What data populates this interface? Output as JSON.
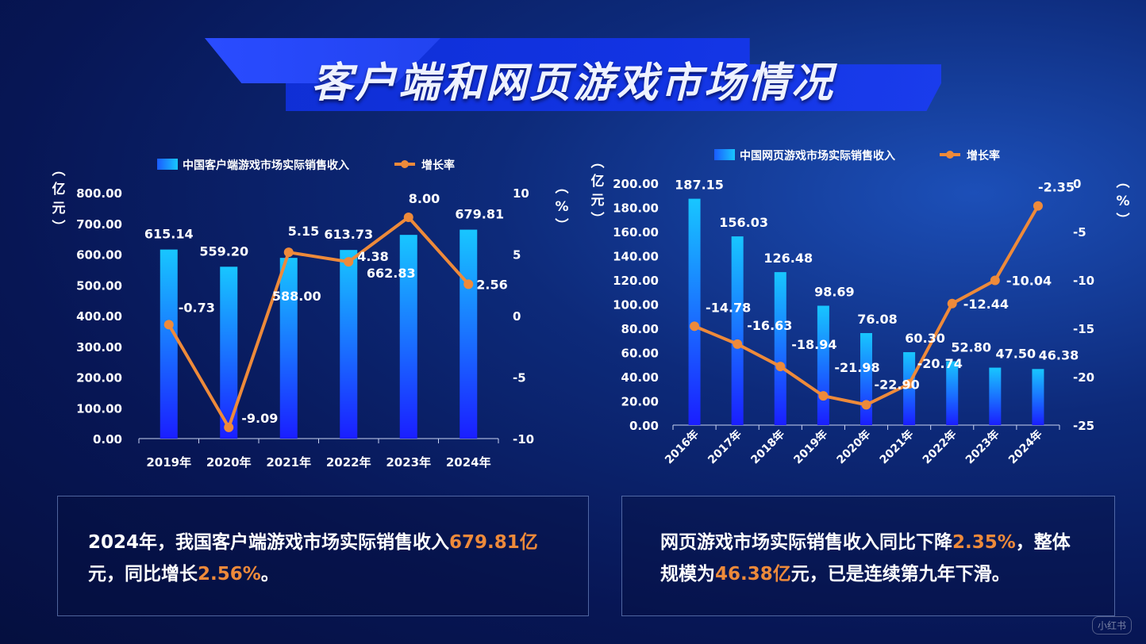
{
  "page": {
    "title": "客户端和网页游戏市场情况",
    "watermark": "小红书"
  },
  "colors": {
    "bar": "#1aa0ff",
    "line": "#ee8a3a",
    "highlight": "#ee8a3a"
  },
  "chart_data": [
    {
      "type": "bar",
      "categories": [
        "2019年",
        "2020年",
        "2021年",
        "2022年",
        "2023年",
        "2024年"
      ],
      "series": [
        {
          "name": "中国客户端游戏市场实际销售收入",
          "type": "bar",
          "values": [
            615.14,
            559.2,
            588.0,
            613.73,
            662.83,
            679.81
          ],
          "labels": [
            "615.14",
            "559.20",
            "588.00",
            "613.73",
            "662.83",
            "679.81"
          ]
        },
        {
          "name": "增长率",
          "type": "line",
          "values": [
            -0.73,
            -9.09,
            5.15,
            4.38,
            8.0,
            2.56
          ],
          "labels": [
            "-0.73",
            "-9.09",
            "5.15",
            "4.38",
            "8.00",
            "2.56"
          ]
        }
      ],
      "ylabel": "亿元",
      "ylim": [
        0,
        800
      ],
      "yticks": [
        "0.00",
        "100.00",
        "200.00",
        "300.00",
        "400.00",
        "500.00",
        "600.00",
        "700.00",
        "800.00"
      ],
      "y2label": "%",
      "y2lim": [
        -10,
        10
      ],
      "y2ticks": [
        "-10",
        "-5",
        "0",
        "5",
        "10"
      ],
      "legend": "top-center"
    },
    {
      "type": "bar",
      "categories": [
        "2016年",
        "2017年",
        "2018年",
        "2019年",
        "2020年",
        "2021年",
        "2022年",
        "2023年",
        "2024年"
      ],
      "series": [
        {
          "name": "中国网页游戏市场实际销售收入",
          "type": "bar",
          "values": [
            187.15,
            156.03,
            126.48,
            98.69,
            76.08,
            60.3,
            52.8,
            47.5,
            46.38
          ],
          "labels": [
            "187.15",
            "156.03",
            "126.48",
            "98.69",
            "76.08",
            "60.30",
            "52.80",
            "47.50",
            "46.38"
          ]
        },
        {
          "name": "增长率",
          "type": "line",
          "values": [
            -14.78,
            -16.63,
            -18.94,
            -21.98,
            -22.9,
            -20.74,
            -12.44,
            -10.04,
            -2.35
          ],
          "labels": [
            "-14.78",
            "-16.63",
            "-18.94",
            "-21.98",
            "-22.90",
            "-20.74",
            "-12.44",
            "-10.04",
            "-2.35"
          ]
        }
      ],
      "ylabel": "亿元",
      "ylim": [
        0,
        200
      ],
      "yticks": [
        "0.00",
        "20.00",
        "40.00",
        "60.00",
        "80.00",
        "100.00",
        "120.00",
        "140.00",
        "160.00",
        "180.00",
        "200.00"
      ],
      "y2label": "%",
      "y2lim": [
        -25,
        0
      ],
      "y2ticks": [
        "-25",
        "-20",
        "-15",
        "-10",
        "-5",
        "0"
      ],
      "legend": "top-center"
    }
  ],
  "summaries": [
    {
      "text_a": "2024年，我国客户端游戏市场实际销售收入",
      "hl_a": "679.81亿",
      "text_b": "元，同比增长",
      "hl_b": "2.56%",
      "text_c": "。"
    },
    {
      "text_a": "网页游戏市场实际销售收入同比下降",
      "hl_a": "2.35%",
      "text_b": "，整体规模为",
      "hl_b": "46.38亿",
      "text_c": "元，已是连续第九年下滑。"
    }
  ]
}
